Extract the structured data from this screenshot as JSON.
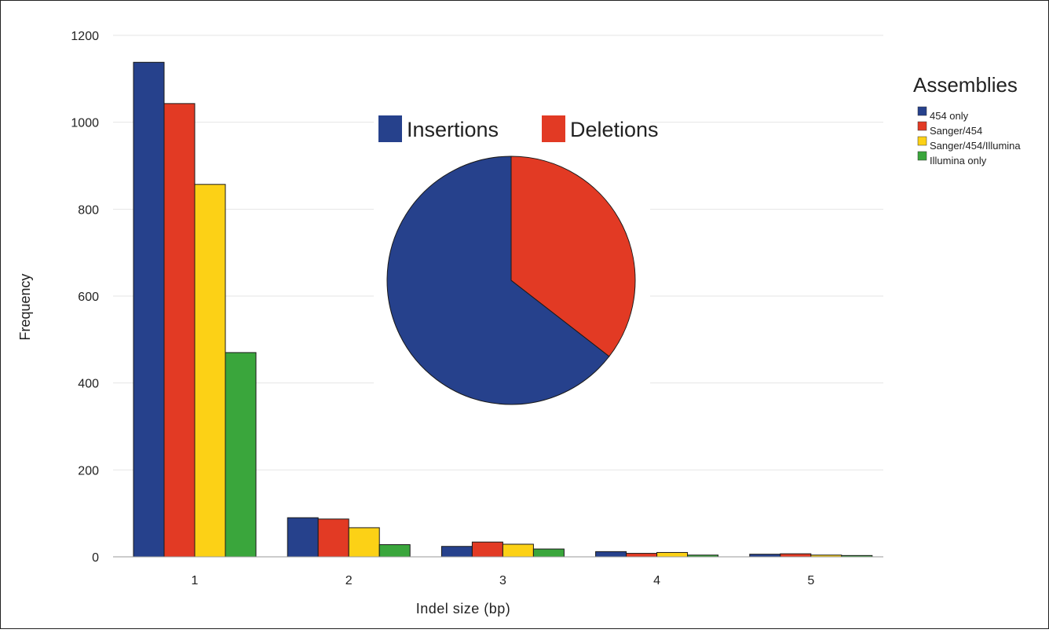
{
  "chart_data": [
    {
      "type": "bar",
      "title": "",
      "xlabel": "Indel size (bp)",
      "ylabel": "Frequency",
      "ylim": [
        0,
        1200
      ],
      "yticks": [
        "0",
        "200",
        "400",
        "600",
        "800",
        "1000",
        "1200"
      ],
      "categories": [
        "1",
        "2",
        "3",
        "4",
        "5"
      ],
      "grid": true,
      "legend": {
        "title": "Assemblies",
        "placement": "right"
      },
      "series": [
        {
          "name": "454 only",
          "color": "#26418c",
          "values": [
            1138,
            90,
            24,
            12,
            6
          ]
        },
        {
          "name": "Sanger/454",
          "color": "#e23a24",
          "values": [
            1043,
            87,
            34,
            8,
            7
          ]
        },
        {
          "name": "Sanger/454/Illumina",
          "color": "#fcd116",
          "values": [
            857,
            67,
            29,
            10,
            4
          ]
        },
        {
          "name": "Illumina only",
          "color": "#3aa63c",
          "values": [
            470,
            28,
            18,
            4,
            3
          ]
        }
      ]
    },
    {
      "type": "pie",
      "title": "",
      "legend": {
        "placement": "top"
      },
      "slices": [
        {
          "name": "Insertions",
          "color": "#26418c",
          "value": 64.5
        },
        {
          "name": "Deletions",
          "color": "#e23a24",
          "value": 35.5
        }
      ]
    }
  ]
}
